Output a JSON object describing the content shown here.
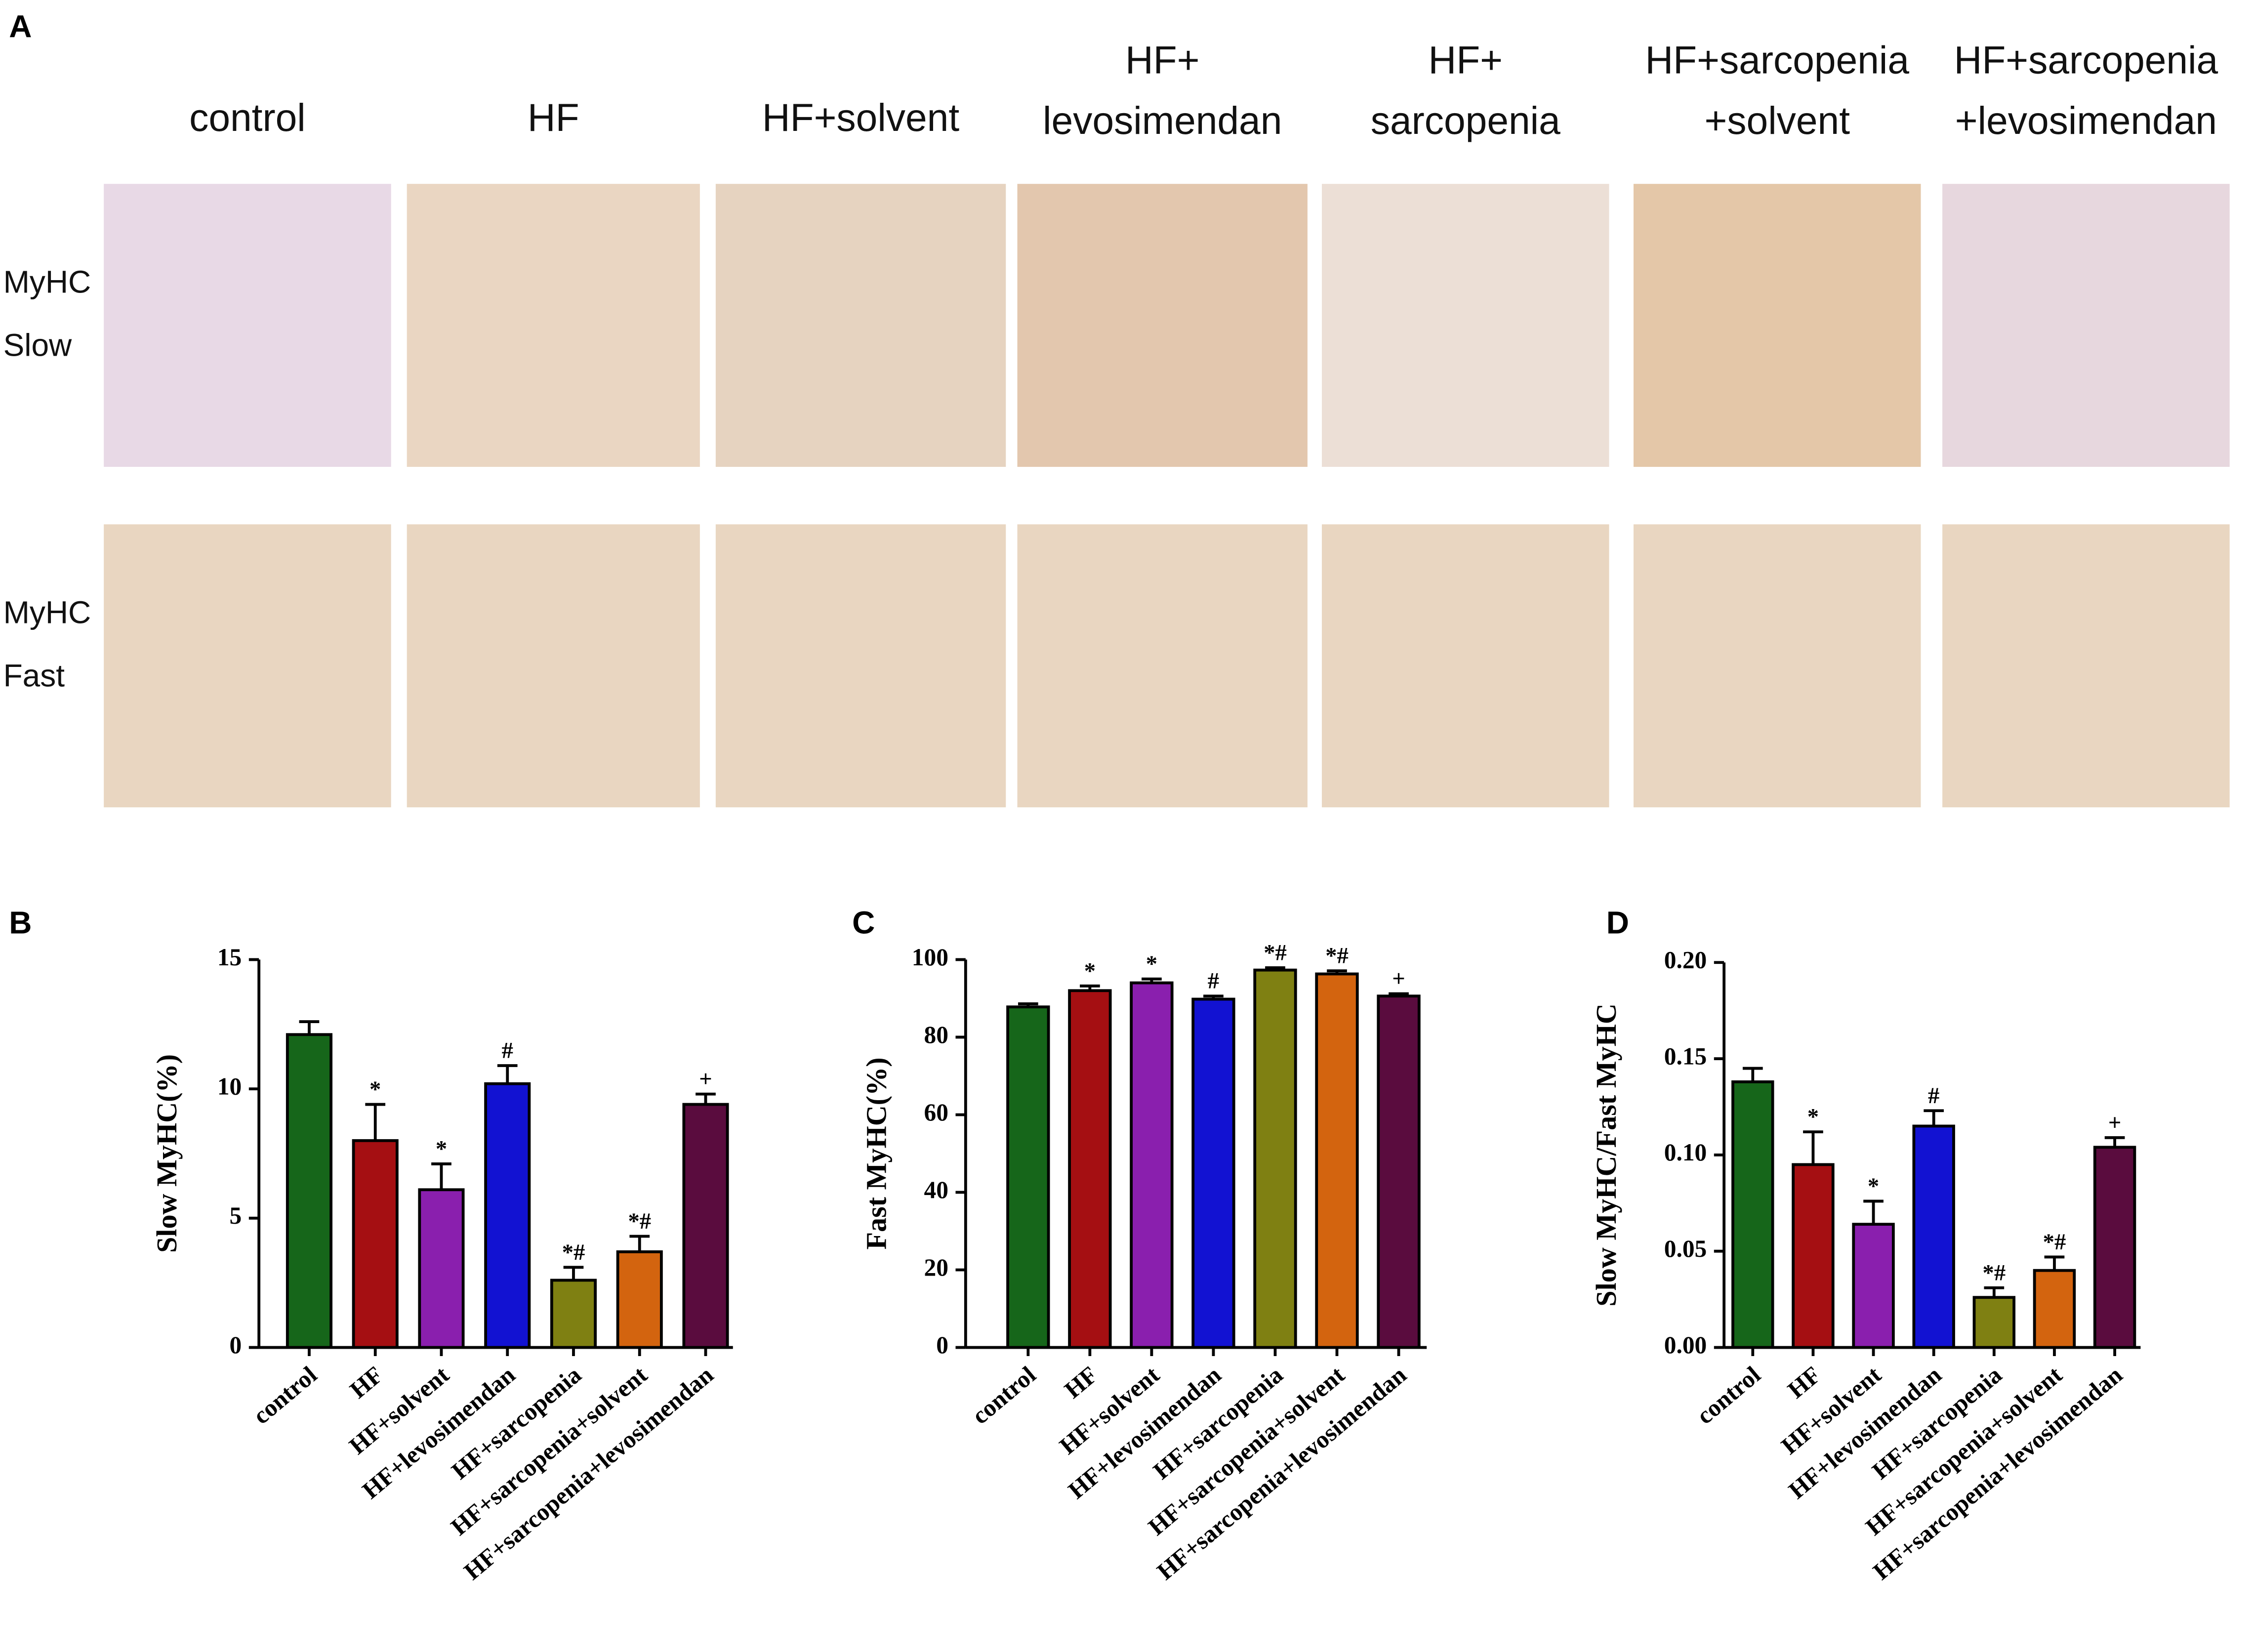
{
  "panel_a": {
    "label": "A",
    "columns": [
      [
        "control"
      ],
      [
        "HF"
      ],
      [
        "HF+solvent"
      ],
      [
        "HF+",
        "levosimendan"
      ],
      [
        "HF+",
        "sarcopenia"
      ],
      [
        "HF+sarcopenia",
        "+solvent"
      ],
      [
        "HF+sarcopenia",
        "+levosimendan"
      ]
    ],
    "rows": [
      [
        "MyHC",
        "Slow"
      ],
      [
        "MyHC",
        "Fast"
      ]
    ]
  },
  "chart_data": [
    {
      "type": "bar",
      "label": "B",
      "y_label": "Slow MyHC(%)",
      "categories": [
        "control",
        "HF",
        "HF+solvent",
        "HF+levosimendan",
        "HF+sarcopenia",
        "HF+sarcopenia+solvent",
        "HF+sarcopenia+levosimendan"
      ],
      "values": [
        12.1,
        8.0,
        6.1,
        10.2,
        2.6,
        3.7,
        9.4
      ],
      "errors": [
        0.5,
        1.4,
        1.0,
        0.7,
        0.5,
        0.6,
        0.4
      ],
      "annotations": [
        null,
        "*",
        "*",
        "#",
        "*#",
        "*#",
        "+"
      ],
      "colors": [
        "#16661a",
        "#a50f12",
        "#8a1fae",
        "#1212d2",
        "#7f8012",
        "#d3640f",
        "#5a0c3e"
      ],
      "ylim": [
        0,
        15
      ],
      "yticks": [
        0,
        5,
        10,
        15
      ]
    },
    {
      "type": "bar",
      "label": "C",
      "y_label": "Fast MyHC(%)",
      "categories": [
        "control",
        "HF",
        "HF+solvent",
        "HF+levosimendan",
        "HF+sarcopenia",
        "HF+sarcopenia+solvent",
        "HF+sarcopenia+levosimendan"
      ],
      "values": [
        87.8,
        92.0,
        94.0,
        89.8,
        97.3,
        96.3,
        90.6
      ],
      "errors": [
        0.8,
        1.2,
        1.0,
        0.8,
        0.6,
        0.8,
        0.6
      ],
      "annotations": [
        null,
        "*",
        "*",
        "#",
        "*#",
        "*#",
        "+"
      ],
      "colors": [
        "#16661a",
        "#a50f12",
        "#8a1fae",
        "#1212d2",
        "#7f8012",
        "#d3640f",
        "#5a0c3e"
      ],
      "ylim": [
        0,
        100
      ],
      "yticks": [
        0,
        20,
        40,
        60,
        80,
        100
      ]
    },
    {
      "type": "bar",
      "label": "D",
      "y_label": "Slow MyHC/Fast MyHC",
      "categories": [
        "control",
        "HF",
        "HF+solvent",
        "HF+levosimendan",
        "HF+sarcopenia",
        "HF+sarcopenia+solvent",
        "HF+sarcopenia+levosimendan"
      ],
      "values": [
        0.138,
        0.095,
        0.064,
        0.115,
        0.026,
        0.04,
        0.104
      ],
      "errors": [
        0.007,
        0.017,
        0.012,
        0.008,
        0.005,
        0.007,
        0.005
      ],
      "annotations": [
        null,
        "*",
        "*",
        "#",
        "*#",
        "*#",
        "+"
      ],
      "colors": [
        "#16661a",
        "#a50f12",
        "#8a1fae",
        "#1212d2",
        "#7f8012",
        "#d3640f",
        "#5a0c3e"
      ],
      "ylim": [
        0,
        0.2
      ],
      "yticks": [
        {
          "value": 0,
          "label": "0.00"
        },
        0.05,
        {
          "value": 0.1,
          "label": "0.10"
        },
        0.15,
        {
          "value": 0.2,
          "label": "0.20"
        }
      ]
    }
  ]
}
